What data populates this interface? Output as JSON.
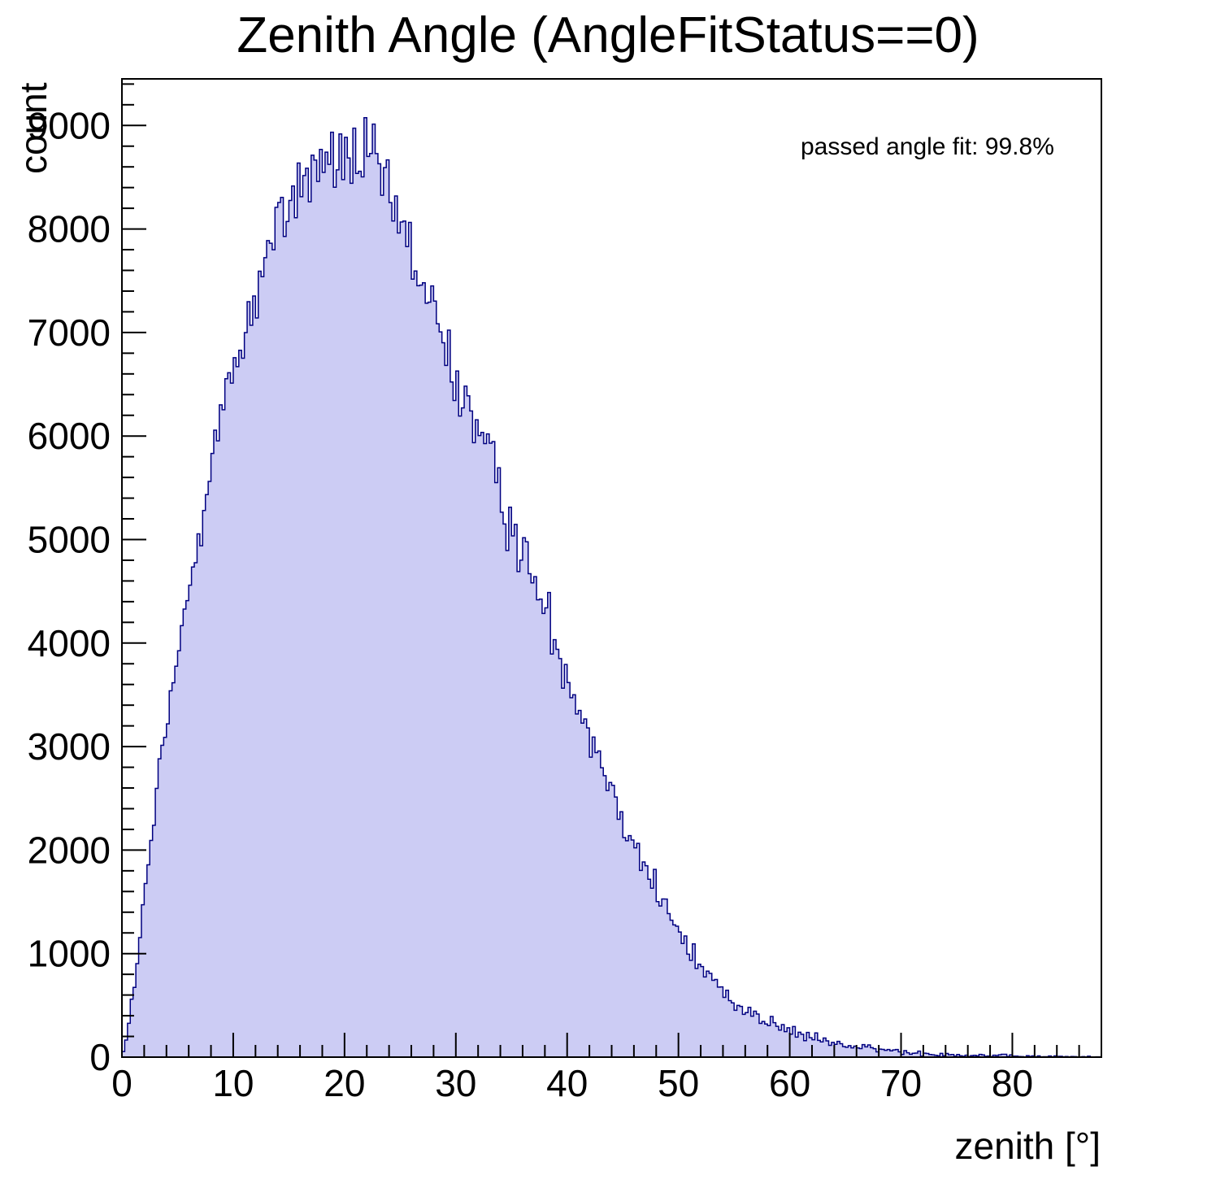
{
  "chart_data": {
    "type": "bar",
    "subtype": "histogram",
    "title": "Zenith Angle (AngleFitStatus==0)",
    "xlabel": "zenith [°]",
    "ylabel": "count",
    "annotation": "passed angle fit: 99.8%",
    "xlim": [
      0,
      88
    ],
    "ylim": [
      0,
      9450
    ],
    "x_ticks": [
      0,
      10,
      20,
      30,
      40,
      50,
      60,
      70,
      80
    ],
    "x_minor_step": 2,
    "y_ticks": [
      0,
      1000,
      2000,
      3000,
      4000,
      5000,
      6000,
      7000,
      8000,
      9000
    ],
    "y_minor_step": 200,
    "bin_width": 0.25,
    "grid": false,
    "legend": "none",
    "fill_color": "#ccccf4",
    "line_color": "#000080",
    "frame_color": "#000000",
    "noise": {
      "seed": 12345,
      "sigma_scale": 2.0
    },
    "envelope": [
      [
        0,
        30
      ],
      [
        0.5,
        200
      ],
      [
        1,
        600
      ],
      [
        1.5,
        1050
      ],
      [
        2,
        1500
      ],
      [
        2.5,
        1950
      ],
      [
        3,
        2400
      ],
      [
        3.5,
        2820
      ],
      [
        4,
        3200
      ],
      [
        4.5,
        3520
      ],
      [
        5,
        3820
      ],
      [
        5.5,
        4120
      ],
      [
        6,
        4500
      ],
      [
        6.5,
        4850
      ],
      [
        7,
        5200
      ],
      [
        7.5,
        5500
      ],
      [
        8,
        5780
      ],
      [
        8.5,
        6000
      ],
      [
        9,
        6200
      ],
      [
        9.5,
        6400
      ],
      [
        10,
        6600
      ],
      [
        10.5,
        6800
      ],
      [
        11,
        7000
      ],
      [
        11.5,
        7200
      ],
      [
        12,
        7400
      ],
      [
        13,
        7700
      ],
      [
        14,
        8000
      ],
      [
        15,
        8250
      ],
      [
        16,
        8420
      ],
      [
        17,
        8550
      ],
      [
        18,
        8650
      ],
      [
        19,
        8600
      ],
      [
        20,
        8700
      ],
      [
        21,
        8650
      ],
      [
        22,
        8620
      ],
      [
        22.5,
        8680
      ],
      [
        23,
        8520
      ],
      [
        24,
        8300
      ],
      [
        25,
        8020
      ],
      [
        26,
        7720
      ],
      [
        27,
        7450
      ],
      [
        27.5,
        7380
      ],
      [
        28,
        7150
      ],
      [
        29,
        6820
      ],
      [
        30,
        6560
      ],
      [
        31,
        6320
      ],
      [
        32,
        6060
      ],
      [
        33,
        5760
      ],
      [
        34,
        5460
      ],
      [
        35,
        5160
      ],
      [
        36,
        4870
      ],
      [
        37,
        4600
      ],
      [
        38,
        4300
      ],
      [
        39,
        4000
      ],
      [
        40,
        3740
      ],
      [
        41,
        3440
      ],
      [
        42,
        3140
      ],
      [
        43,
        2890
      ],
      [
        44,
        2600
      ],
      [
        45,
        2340
      ],
      [
        46,
        2090
      ],
      [
        47,
        1850
      ],
      [
        48,
        1600
      ],
      [
        49,
        1400
      ],
      [
        50,
        1200
      ],
      [
        51,
        1030
      ],
      [
        52,
        880
      ],
      [
        53,
        750
      ],
      [
        54,
        640
      ],
      [
        55,
        545
      ],
      [
        56,
        465
      ],
      [
        57,
        398
      ],
      [
        58,
        340
      ],
      [
        59,
        292
      ],
      [
        60,
        250
      ],
      [
        61,
        215
      ],
      [
        62,
        185
      ],
      [
        63,
        158
      ],
      [
        64,
        135
      ],
      [
        65,
        115
      ],
      [
        66,
        98
      ],
      [
        67,
        84
      ],
      [
        68,
        72
      ],
      [
        69,
        62
      ],
      [
        70,
        53
      ],
      [
        71,
        45
      ],
      [
        72,
        39
      ],
      [
        73,
        33
      ],
      [
        74,
        28
      ],
      [
        75,
        24
      ],
      [
        76,
        20
      ],
      [
        77,
        17
      ],
      [
        78,
        14
      ],
      [
        80,
        10
      ],
      [
        82,
        7
      ],
      [
        84,
        5
      ],
      [
        86,
        3
      ],
      [
        88,
        2
      ]
    ]
  }
}
